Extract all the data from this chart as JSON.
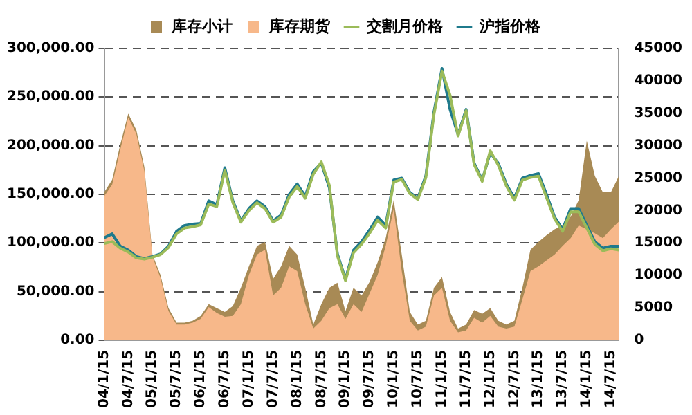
{
  "chart_data": {
    "type": "line",
    "categories": [
      "04/1/15",
      null,
      null,
      "04/7/15",
      null,
      null,
      "05/1/15",
      null,
      null,
      "05/7/15",
      null,
      null,
      "06/1/15",
      null,
      null,
      "06/7/15",
      null,
      null,
      "07/1/15",
      null,
      null,
      "07/7/15",
      null,
      null,
      "08/1/15",
      null,
      null,
      "08/7/15",
      null,
      null,
      "09/1/15",
      null,
      null,
      "09/7/15",
      null,
      null,
      "10/1/15",
      null,
      null,
      "10/7/15",
      null,
      null,
      "11/1/15",
      null,
      null,
      "11/7/15",
      null,
      null,
      "12/1/15",
      null,
      null,
      "12/7/15",
      null,
      null,
      "13/1/15",
      null,
      null,
      "13/7/15",
      null,
      null,
      "14/1/15",
      null,
      null,
      "14/7/15",
      null
    ],
    "series": [
      {
        "name": "库存小计",
        "type": "area",
        "color": "#a88a55",
        "values": [
          152000,
          165000,
          201000,
          233000,
          216000,
          178000,
          88000,
          67000,
          33000,
          18000,
          18000,
          20000,
          25000,
          37000,
          33000,
          29000,
          35000,
          54000,
          76000,
          97000,
          101000,
          63000,
          76000,
          97000,
          88000,
          54000,
          16000,
          37000,
          54000,
          59000,
          30000,
          54000,
          46000,
          60000,
          80000,
          105000,
          144000,
          88000,
          29000,
          16000,
          20000,
          54000,
          65000,
          29000,
          12000,
          16000,
          31000,
          27000,
          33000,
          20000,
          16000,
          20000,
          54000,
          93000,
          101000,
          108000,
          114000,
          118000,
          127000,
          144000,
          205000,
          169000,
          152000,
          152000,
          169000
        ]
      },
      {
        "name": "库存期货",
        "type": "area",
        "color": "#f7b88a",
        "values": [
          148000,
          160000,
          196000,
          229000,
          212000,
          174000,
          86000,
          64000,
          30000,
          16000,
          16000,
          18000,
          22000,
          34000,
          28000,
          24000,
          25000,
          37000,
          67000,
          88000,
          93000,
          46000,
          54000,
          76000,
          71000,
          37000,
          12000,
          20000,
          33000,
          37000,
          22000,
          37000,
          29000,
          48000,
          67000,
          97000,
          135000,
          71000,
          20000,
          10000,
          14000,
          46000,
          54000,
          20000,
          8000,
          10000,
          23000,
          18000,
          25000,
          14000,
          12000,
          14000,
          42000,
          71000,
          76000,
          82000,
          88000,
          97000,
          105000,
          118000,
          114000,
          110000,
          105000,
          114000,
          122000
        ]
      },
      {
        "name": "交割月价格",
        "type": "line",
        "axis": "y2",
        "color": "#9bbb59",
        "values": [
          14900,
          15200,
          14200,
          13600,
          12700,
          12500,
          12800,
          13200,
          14300,
          16400,
          17300,
          17500,
          17800,
          21000,
          20600,
          26200,
          21200,
          18200,
          20000,
          21200,
          20300,
          18200,
          19000,
          22100,
          23700,
          21900,
          25600,
          27500,
          23900,
          13000,
          9200,
          13500,
          14800,
          16500,
          18500,
          17300,
          24400,
          24800,
          22600,
          21700,
          25100,
          34800,
          41500,
          37800,
          31500,
          35400,
          27100,
          24500,
          29200,
          27000,
          23800,
          21600,
          24700,
          25100,
          25300,
          22000,
          18700,
          16800,
          19800,
          19800,
          17300,
          14800,
          13800,
          14100,
          13900
        ]
      },
      {
        "name": "沪指价格",
        "type": "line",
        "axis": "y2",
        "color": "#1f7a8c",
        "values": [
          15800,
          16400,
          14500,
          13900,
          12900,
          12600,
          12900,
          13300,
          14500,
          16800,
          17700,
          17900,
          18000,
          21500,
          20900,
          26600,
          21500,
          18400,
          20300,
          21500,
          20600,
          18400,
          19300,
          22500,
          24100,
          22200,
          26000,
          27300,
          23500,
          13300,
          9400,
          13900,
          15200,
          17000,
          19000,
          17700,
          24700,
          25000,
          22800,
          21900,
          25400,
          35200,
          41900,
          35600,
          31700,
          35600,
          27300,
          24700,
          28900,
          27300,
          24100,
          21900,
          25000,
          25400,
          25700,
          22500,
          19000,
          17100,
          20300,
          20300,
          17700,
          15200,
          14200,
          14500,
          14500
        ]
      }
    ],
    "ylim": [
      0,
      300000
    ],
    "yticks": [
      {
        "value": 0,
        "label": "0.00"
      },
      {
        "value": 50000,
        "label": "50,000.00"
      },
      {
        "value": 100000,
        "label": "100,000.00"
      },
      {
        "value": 150000,
        "label": "150,000.00"
      },
      {
        "value": 200000,
        "label": "200,000.00"
      },
      {
        "value": 250000,
        "label": "250,000.00"
      },
      {
        "value": 300000,
        "label": "300,000.00"
      }
    ],
    "y2lim": [
      0,
      45000
    ],
    "y2ticks": [
      0,
      5000,
      10000,
      15000,
      20000,
      25000,
      30000,
      35000,
      40000,
      45000
    ],
    "grid": "y",
    "legend": "top",
    "marker": "none"
  }
}
